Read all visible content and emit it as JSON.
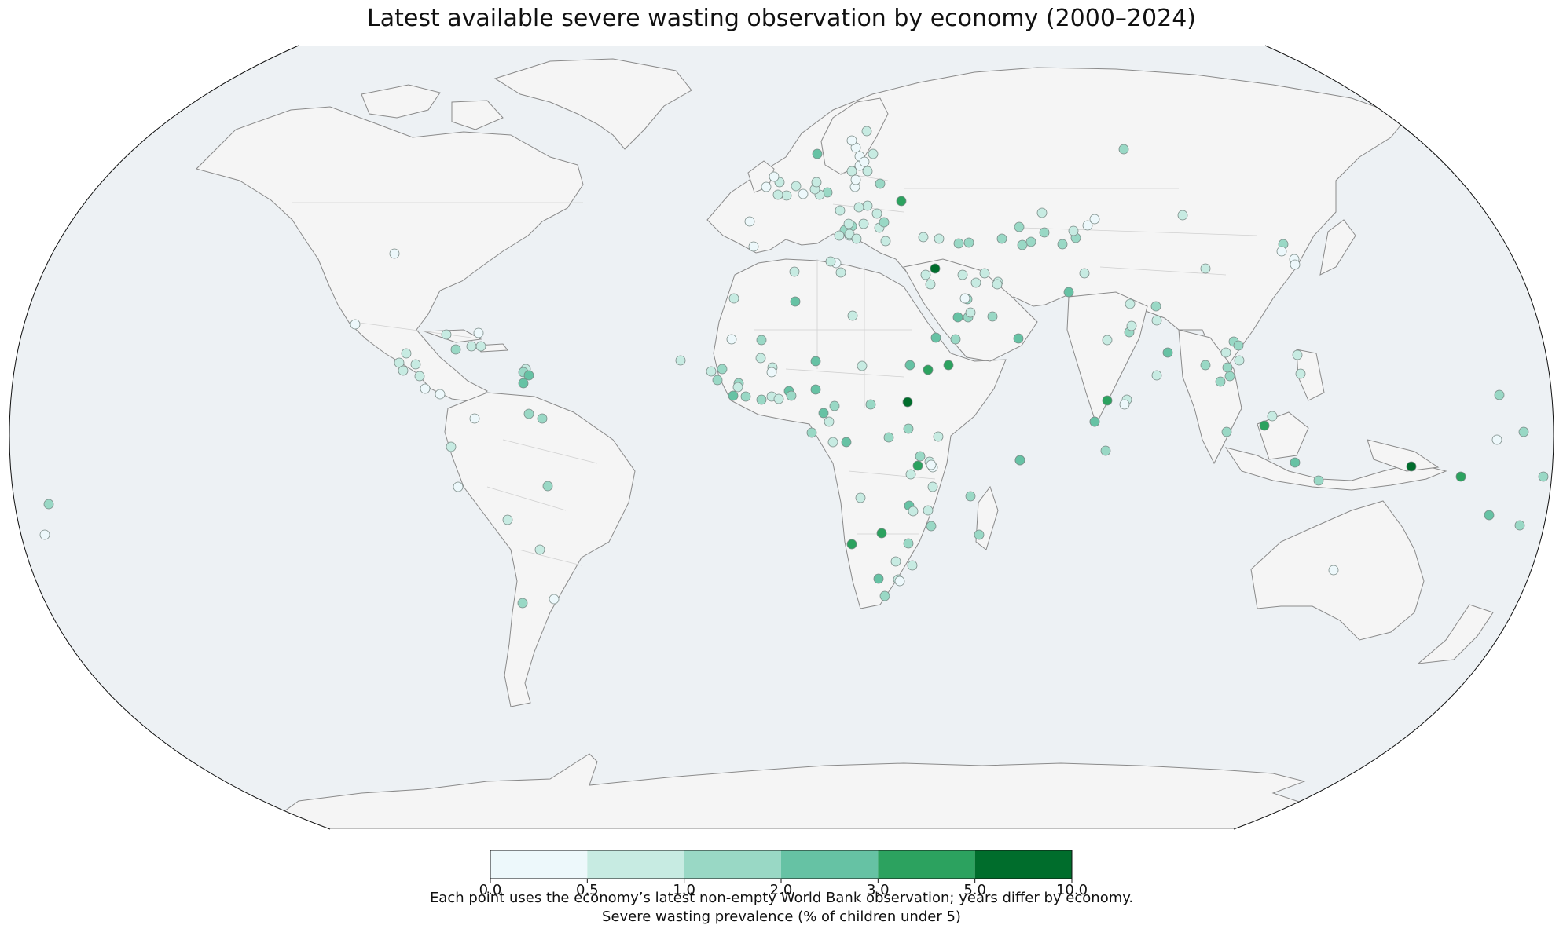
{
  "title": "Latest available severe wasting observation by economy (2000–2024)",
  "note": "Each point uses the economy’s latest non-empty World Bank observation; years differ by economy.",
  "colorbar": {
    "label": "Severe wasting prevalence (% of children under 5)",
    "ticks": [
      "0.0",
      "0.5",
      "1.0",
      "2.0",
      "3.0",
      "5.0",
      "10.0"
    ],
    "bins": [
      {
        "min": 0.0,
        "max": 0.5,
        "color": "#edf8fb"
      },
      {
        "min": 0.5,
        "max": 1.0,
        "color": "#c7ebe2"
      },
      {
        "min": 1.0,
        "max": 2.0,
        "color": "#99d8c5"
      },
      {
        "min": 2.0,
        "max": 3.0,
        "color": "#66c2a4"
      },
      {
        "min": 3.0,
        "max": 5.0,
        "color": "#2ca25f"
      },
      {
        "min": 5.0,
        "max": 10.0,
        "color": "#006d2c"
      }
    ]
  },
  "colors": {
    "ocean": "#edf1f4",
    "land": "#f5f5f5",
    "coastline": "#8a8a8a",
    "border": "#d0d0d0",
    "point_edge": "#7a8a86"
  }
}
